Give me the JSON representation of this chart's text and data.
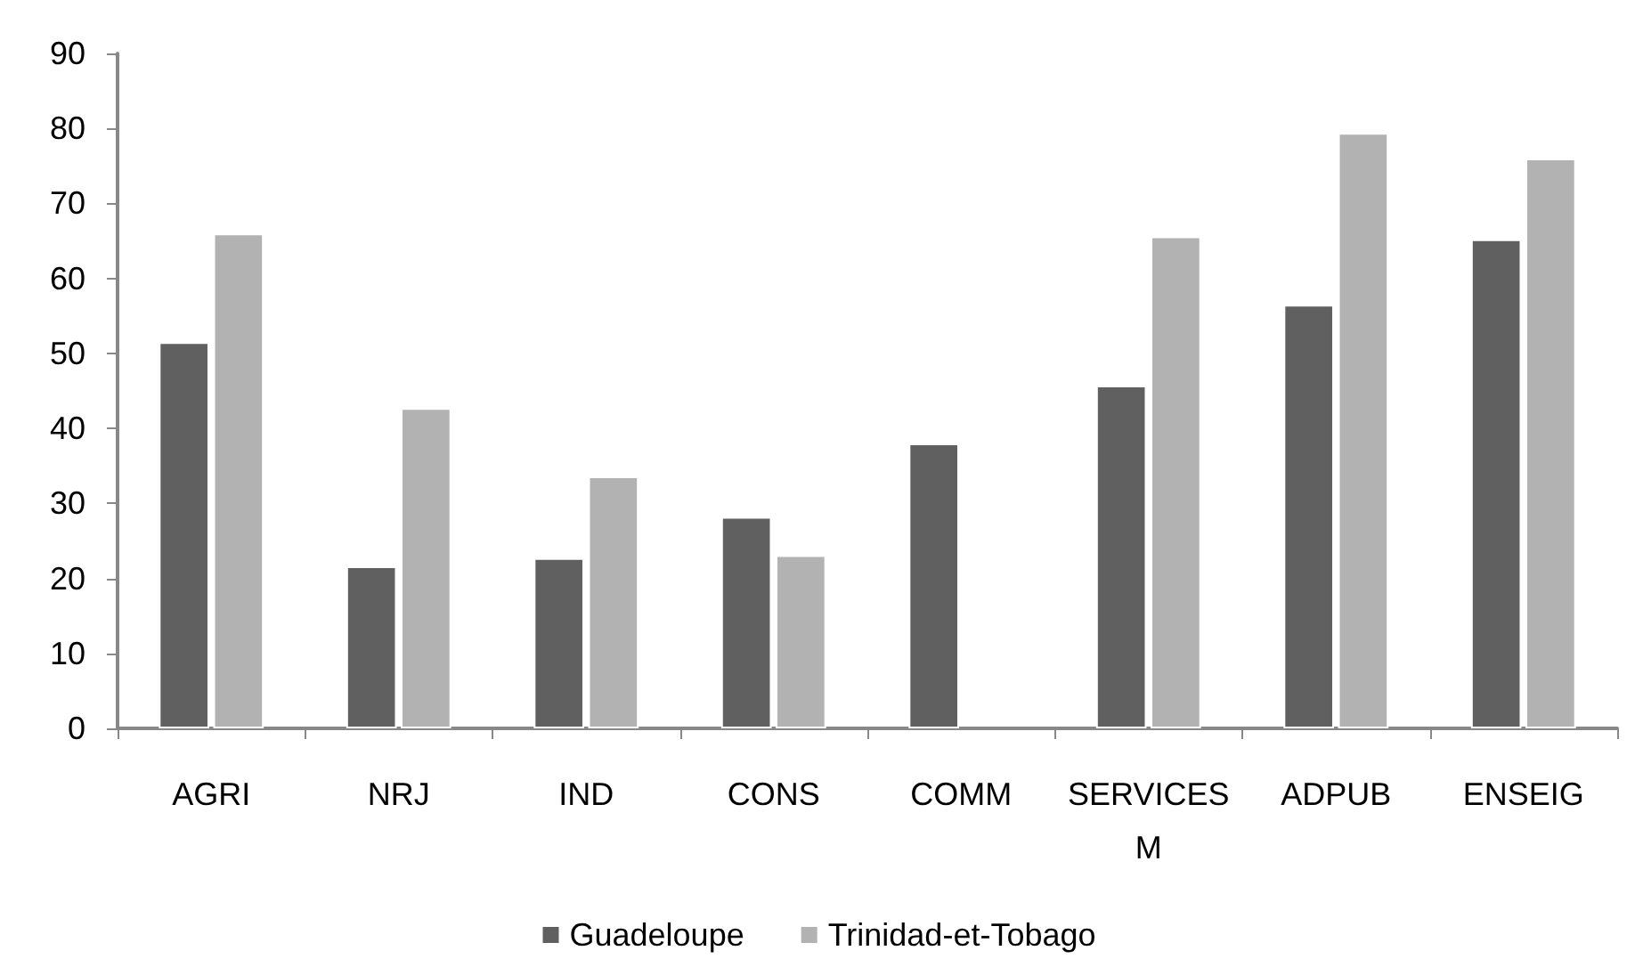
{
  "chart_data": {
    "type": "bar",
    "categories": [
      "AGRI",
      "NRJ",
      "IND",
      "CONS",
      "COMM",
      "SERVICESM",
      "ADPUB",
      "ENSEIG"
    ],
    "series": [
      {
        "name": "Guadeloupe",
        "color": "#606060",
        "values": [
          51.5,
          21.6,
          22.7,
          28.2,
          38.0,
          45.7,
          56.5,
          65.2
        ]
      },
      {
        "name": "Trinidad-et-Tobago",
        "color": "#b2b2b2",
        "values": [
          66.0,
          42.7,
          33.6,
          23.1,
          null,
          65.6,
          79.4,
          76.0
        ]
      }
    ],
    "ylim": [
      0,
      90
    ],
    "yticks": [
      0,
      10,
      20,
      30,
      40,
      50,
      60,
      70,
      80,
      90
    ],
    "grid": false,
    "legend": "bottom"
  }
}
